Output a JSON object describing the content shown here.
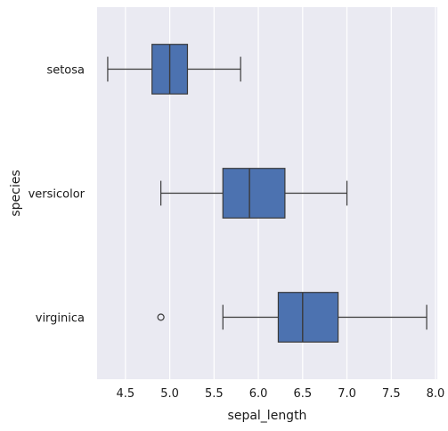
{
  "chart_data": {
    "type": "boxplot",
    "orientation": "horizontal",
    "title": "",
    "xlabel": "sepal_length",
    "ylabel": "species",
    "xlim": [
      4.18,
      8.02
    ],
    "xticks": [
      4.5,
      5.0,
      5.5,
      6.0,
      6.5,
      7.0,
      7.5,
      8.0
    ],
    "xtick_labels": [
      "4.5",
      "5.0",
      "5.5",
      "6.0",
      "6.5",
      "7.0",
      "7.5",
      "8.0"
    ],
    "categories": [
      "setosa",
      "versicolor",
      "virginica"
    ],
    "boxes": [
      {
        "category": "setosa",
        "whisker_low": 4.3,
        "q1": 4.8,
        "median": 5.0,
        "q3": 5.2,
        "whisker_high": 5.8,
        "outliers": []
      },
      {
        "category": "versicolor",
        "whisker_low": 4.9,
        "q1": 5.6,
        "median": 5.9,
        "q3": 6.3,
        "whisker_high": 7.0,
        "outliers": []
      },
      {
        "category": "virginica",
        "whisker_low": 5.6,
        "q1": 6.225,
        "median": 6.5,
        "q3": 6.9,
        "whisker_high": 7.9,
        "outliers": [
          4.9
        ]
      }
    ],
    "grid": true,
    "colors": {
      "background": "#eaeaf2",
      "grid": "#ffffff",
      "box_fill": "#4c72b0",
      "line": "#3a3a3a"
    }
  }
}
